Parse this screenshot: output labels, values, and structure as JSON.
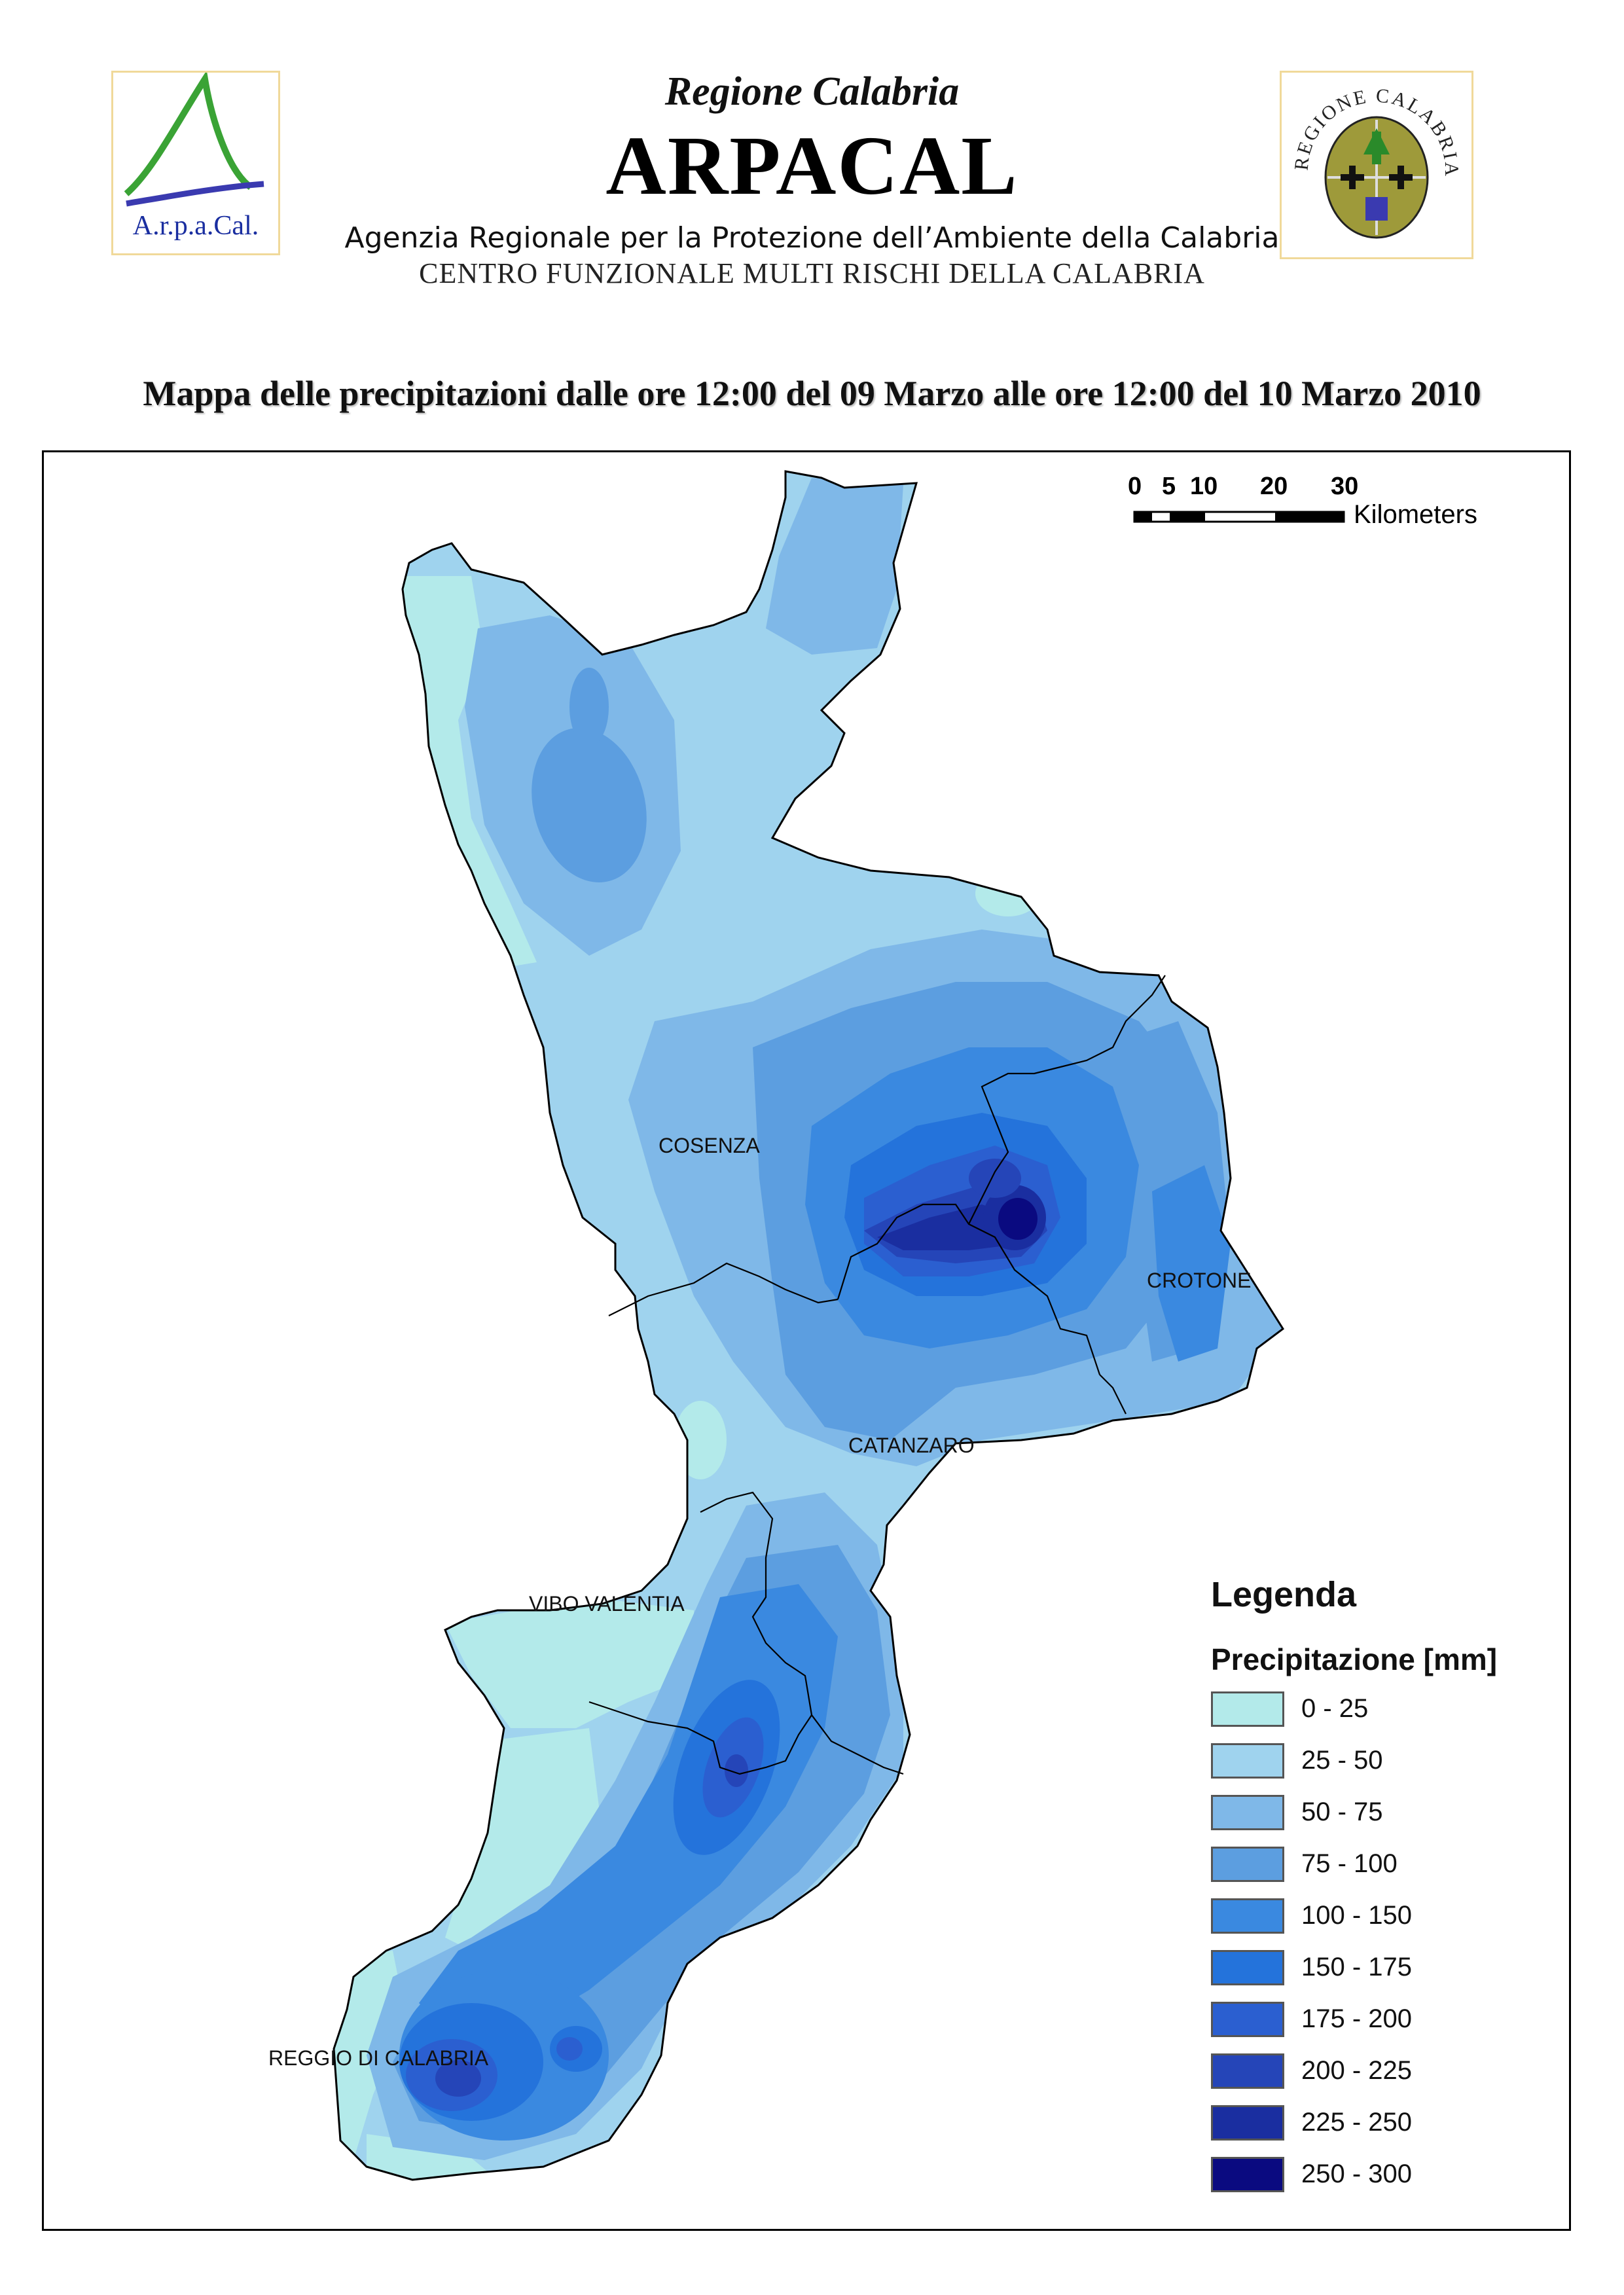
{
  "header": {
    "region": "Regione Calabria",
    "title": "ARPACAL",
    "agency": "Agenzia Regionale per la Protezione dell’Ambiente della Calabria",
    "centre": "CENTRO FUNZIONALE MULTI RISCHI DELLA CALABRIA",
    "logo_left_text": "A.r.p.a.Cal.",
    "logo_right_text": "REGIONE CALABRIA"
  },
  "map": {
    "title": "Mappa delle precipitazioni dalle ore 12:00 del 09 Marzo alle ore 12:00 del 10 Marzo 2010",
    "cities": [
      "COSENZA",
      "CROTONE",
      "CATANZARO",
      "VIBO VALENTIA",
      "REGGIO DI CALABRIA"
    ]
  },
  "scale_bar": {
    "ticks": [
      "0",
      "5",
      "10",
      "20",
      "30"
    ],
    "unit": "Kilometers"
  },
  "legend": {
    "title": "Legenda",
    "subtitle": "Precipitazione [mm]",
    "items": [
      {
        "label": "0 - 25",
        "color": "#b3eaea"
      },
      {
        "label": "25 - 50",
        "color": "#9fd3ee"
      },
      {
        "label": "50 - 75",
        "color": "#7fb8e8"
      },
      {
        "label": "75 - 100",
        "color": "#5c9ee0"
      },
      {
        "label": "100 - 150",
        "color": "#3a89e0"
      },
      {
        "label": "150 - 175",
        "color": "#2473db"
      },
      {
        "label": "175 - 200",
        "color": "#2b5fd0"
      },
      {
        "label": "200 - 225",
        "color": "#2545b8"
      },
      {
        "label": "225 - 250",
        "color": "#1a2ea0"
      },
      {
        "label": "250 - 300",
        "color": "#0a0a80"
      }
    ]
  }
}
